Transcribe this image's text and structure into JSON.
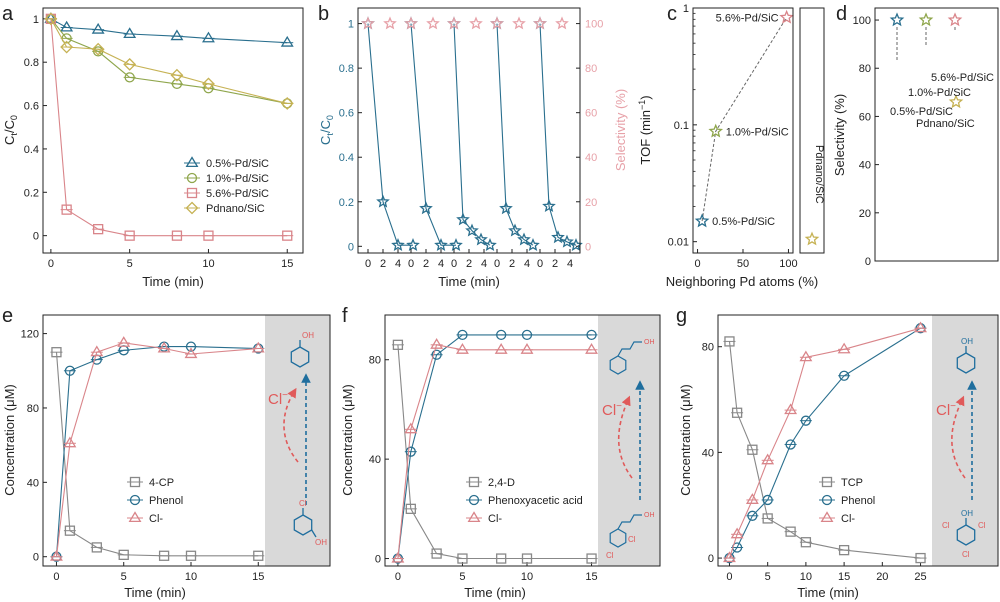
{
  "colors": {
    "blue": "#2a6f8e",
    "olive": "#8fa64c",
    "red": "#d9858a",
    "gold": "#c6b254",
    "pink": "#e7a1a8",
    "gray": "#888888",
    "dash": "#666666",
    "arrowRed": "#e05a5a",
    "arrowBlue": "#1f6e9e",
    "shade": "#d9d9d9"
  },
  "chart_data": [
    {
      "id": "a",
      "type": "line",
      "panel_label": "a",
      "xlabel": "Time (min)",
      "ylabel": "Ct/C0",
      "xlim": [
        -0.5,
        16
      ],
      "ylim": [
        -0.08,
        1.05
      ],
      "xticks": [
        "0",
        "5",
        "10",
        "15"
      ],
      "yticks": [
        "0",
        "0.2",
        "0.4",
        "0.6",
        "0.8",
        "1"
      ],
      "series": [
        {
          "name": "0.5%-Pd/SiC",
          "marker": "triangle",
          "color": "blue",
          "x": [
            0,
            1,
            3,
            5,
            8,
            10,
            15
          ],
          "y": [
            1.0,
            0.96,
            0.95,
            0.93,
            0.92,
            0.91,
            0.89
          ]
        },
        {
          "name": "1.0%-Pd/SiC",
          "marker": "circle",
          "color": "olive",
          "x": [
            0,
            1,
            3,
            5,
            8,
            10,
            15
          ],
          "y": [
            1.0,
            0.91,
            0.85,
            0.73,
            0.7,
            0.68,
            0.61
          ]
        },
        {
          "name": "5.6%-Pd/SiC",
          "marker": "square",
          "color": "red",
          "x": [
            0,
            1,
            3,
            5,
            8,
            10,
            15
          ],
          "y": [
            1.0,
            0.12,
            0.03,
            0.0,
            0.0,
            0.0,
            0.0
          ]
        },
        {
          "name": "Pdnano/SiC",
          "marker": "diamond",
          "color": "gold",
          "x": [
            0,
            1,
            3,
            5,
            8,
            10,
            15
          ],
          "y": [
            1.0,
            0.87,
            0.86,
            0.79,
            0.74,
            0.7,
            0.61
          ]
        }
      ]
    },
    {
      "id": "b",
      "type": "line",
      "panel_label": "b",
      "xlabel": "Time (min)",
      "ylabel": "Ct/C0",
      "ylabel_right": "Selectivity (%)",
      "ylim": [
        -0.03,
        1.07
      ],
      "ylim_right": [
        -3,
        107
      ],
      "cycle_ticks": [
        "0",
        "2",
        "4"
      ],
      "yticks": [
        "0",
        "0.2",
        "0.4",
        "0.6",
        "0.8",
        "1"
      ],
      "yticks_right": [
        "0",
        "20",
        "40",
        "60",
        "80",
        "100"
      ],
      "cycles": [
        {
          "x": [
            0,
            2,
            4,
            6
          ],
          "y": [
            1.0,
            0.2,
            0.005,
            0.005
          ]
        },
        {
          "x": [
            0,
            2,
            4,
            6
          ],
          "y": [
            1.0,
            0.17,
            0.005,
            0.005
          ]
        },
        {
          "x": [
            0,
            1.2,
            2.4,
            3.6,
            4.8
          ],
          "y": [
            1.0,
            0.12,
            0.07,
            0.03,
            0.005
          ]
        },
        {
          "x": [
            0,
            1.2,
            2.4,
            3.6,
            4.8
          ],
          "y": [
            1.0,
            0.17,
            0.07,
            0.03,
            0.005
          ]
        },
        {
          "x": [
            0,
            1.2,
            2.4,
            3.6,
            4.8
          ],
          "y": [
            1.0,
            0.18,
            0.04,
            0.02,
            0.005
          ]
        }
      ],
      "selectivity": [
        100,
        100,
        100,
        100,
        100,
        100,
        100,
        100,
        100,
        100
      ]
    },
    {
      "id": "c",
      "type": "scatter",
      "panel_label": "c",
      "xlabel": "Neighboring Pd atoms (%)",
      "ylabel": "TOF (min-1)",
      "log_y": true,
      "xlim": [
        -5,
        105
      ],
      "ylim": [
        0.008,
        1.0
      ],
      "xticks": [
        "0",
        "50",
        "100"
      ],
      "yticks": [
        "0.01",
        "0.1",
        "1"
      ],
      "points": [
        {
          "name": "0.5%-Pd/SiC",
          "x": 5,
          "y": 0.015,
          "color": "blue"
        },
        {
          "name": "1.0%-Pd/SiC",
          "x": 20,
          "y": 0.088,
          "color": "olive"
        },
        {
          "name": "5.6%-Pd/SiC",
          "x": 98,
          "y": 0.83,
          "color": "red"
        }
      ],
      "side_point": {
        "name": "Pdnano/SiC",
        "y": 0.0105,
        "color": "gold"
      }
    },
    {
      "id": "d",
      "type": "scatter",
      "panel_label": "d",
      "ylabel": "Selectivity (%)",
      "ylim": [
        0,
        105
      ],
      "yticks": [
        "0",
        "20",
        "40",
        "60",
        "80",
        "100"
      ],
      "points": [
        {
          "name": "0.5%-Pd/SiC",
          "y": 100,
          "color": "blue"
        },
        {
          "name": "1.0%-Pd/SiC",
          "y": 100,
          "color": "olive"
        },
        {
          "name": "5.6%-Pd/SiC",
          "y": 100,
          "color": "red"
        },
        {
          "name": "Pdnano/SiC",
          "y": 66,
          "color": "gold"
        }
      ]
    },
    {
      "id": "e",
      "type": "line",
      "panel_label": "e",
      "xlabel": "Time (min)",
      "ylabel": "Concentration (μM)",
      "xlim": [
        -1,
        15.5
      ],
      "ylim": [
        -5,
        130
      ],
      "xticks": [
        "0",
        "5",
        "10",
        "15"
      ],
      "yticks": [
        "0",
        "40",
        "80",
        "120"
      ],
      "series": [
        {
          "name": "4-CP",
          "marker": "square",
          "color": "gray",
          "x": [
            0,
            1,
            3,
            5,
            8,
            10,
            15
          ],
          "y": [
            110,
            14,
            5,
            1,
            0.5,
            0.5,
            0.5
          ]
        },
        {
          "name": "Phenol",
          "marker": "circle",
          "color": "blue",
          "x": [
            0,
            1,
            3,
            5,
            8,
            10,
            15
          ],
          "y": [
            0,
            100,
            106,
            111,
            113,
            113,
            112
          ]
        },
        {
          "name": "Cl-",
          "marker": "triangle",
          "color": "red",
          "x": [
            0,
            1,
            3,
            5,
            8,
            10,
            15
          ],
          "y": [
            0,
            61,
            110,
            115,
            112,
            109,
            112
          ]
        }
      ]
    },
    {
      "id": "f",
      "type": "line",
      "panel_label": "f",
      "xlabel": "Time (min)",
      "ylabel": "Concentration (μM)",
      "xlim": [
        -1,
        15.5
      ],
      "ylim": [
        -3,
        98
      ],
      "xticks": [
        "0",
        "5",
        "10",
        "15"
      ],
      "yticks": [
        "0",
        "40",
        "80"
      ],
      "series": [
        {
          "name": "2,4-D",
          "marker": "square",
          "color": "gray",
          "x": [
            0,
            1,
            3,
            5,
            8,
            10,
            15
          ],
          "y": [
            86,
            20,
            2,
            0,
            0,
            0,
            0
          ]
        },
        {
          "name": "Phenoxyacetic acid",
          "marker": "circle",
          "color": "blue",
          "x": [
            0,
            1,
            3,
            5,
            8,
            10,
            15
          ],
          "y": [
            0,
            43,
            82,
            90,
            90,
            90,
            90
          ]
        },
        {
          "name": "Cl-",
          "marker": "triangle",
          "color": "red",
          "x": [
            0,
            1,
            3,
            5,
            8,
            10,
            15
          ],
          "y": [
            0,
            52,
            86,
            84,
            84,
            84,
            84
          ]
        }
      ]
    },
    {
      "id": "g",
      "type": "line",
      "panel_label": "g",
      "xlabel": "Time (min)",
      "ylabel": "Concentration (μM)",
      "xlim": [
        -1.5,
        26.5
      ],
      "ylim": [
        -3,
        92
      ],
      "xticks": [
        "0",
        "5",
        "10",
        "15",
        "20",
        "25"
      ],
      "yticks": [
        "0",
        "40",
        "80"
      ],
      "series": [
        {
          "name": "TCP",
          "marker": "square",
          "color": "gray",
          "x": [
            0,
            1,
            3,
            5,
            8,
            10,
            15,
            25
          ],
          "y": [
            82,
            55,
            41,
            15,
            10,
            6,
            3,
            0
          ]
        },
        {
          "name": "Phenol",
          "marker": "circle",
          "color": "blue",
          "x": [
            0,
            1,
            3,
            5,
            8,
            10,
            15,
            25
          ],
          "y": [
            0,
            4,
            16,
            22,
            43,
            52,
            69,
            87
          ]
        },
        {
          "name": "Cl-",
          "marker": "triangle",
          "color": "red",
          "x": [
            0,
            1,
            3,
            5,
            8,
            10,
            15,
            25
          ],
          "y": [
            0,
            9,
            22,
            37,
            56,
            76,
            79,
            87
          ]
        }
      ]
    }
  ]
}
